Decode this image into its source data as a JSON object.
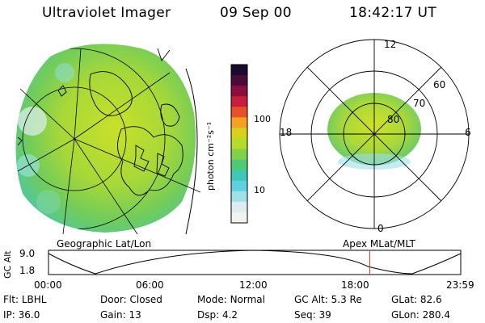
{
  "header": {
    "title": "Ultraviolet Imager",
    "date": "09 Sep 00",
    "time": "18:42:17 UT"
  },
  "colorbar": {
    "label": "photon cm⁻²s⁻¹",
    "ticks": [
      "100",
      "10"
    ],
    "colors": [
      "#1a0a2e",
      "#4b0a3a",
      "#8a0f3c",
      "#c81e3c",
      "#e8502a",
      "#f4a020",
      "#d7d21e",
      "#b5dc2a",
      "#7fd24a",
      "#4fc878",
      "#3dc7b4",
      "#5fd0e0",
      "#a0e0ea",
      "#dcecf0",
      "#f2f2f2"
    ]
  },
  "left_panel": {
    "caption": "Geographic Lat/Lon"
  },
  "right_panel": {
    "caption": "Apex  MLat/MLT",
    "mlt_labels": {
      "top": "12",
      "bottom": "0",
      "left": "18",
      "right": "6"
    },
    "lat_labels": [
      "60",
      "70",
      "80"
    ]
  },
  "altitude_plot": {
    "axis_label": "GC Alt",
    "y_ticks": [
      "9.0",
      "1.8"
    ],
    "x_ticks": [
      "00:00",
      "06:00",
      "12:00",
      "18:00",
      "23:59"
    ],
    "marker_time_hours": 18.7
  },
  "footer": {
    "row1": [
      {
        "label": "Flt:",
        "value": "LBHL"
      },
      {
        "label": "Door:",
        "value": "Closed"
      },
      {
        "label": "Mode:",
        "value": "Normal"
      },
      {
        "label": "GC Alt:",
        "value": "5.3 Re"
      },
      {
        "label": "GLat:",
        "value": "82.6"
      }
    ],
    "row2": [
      {
        "label": "IP:",
        "value": "36.0"
      },
      {
        "label": "Gain:",
        "value": "13"
      },
      {
        "label": "Dsp:",
        "value": "4.2"
      },
      {
        "label": "Seq:",
        "value": "39"
      },
      {
        "label": "GLon:",
        "value": "280.4"
      }
    ]
  }
}
